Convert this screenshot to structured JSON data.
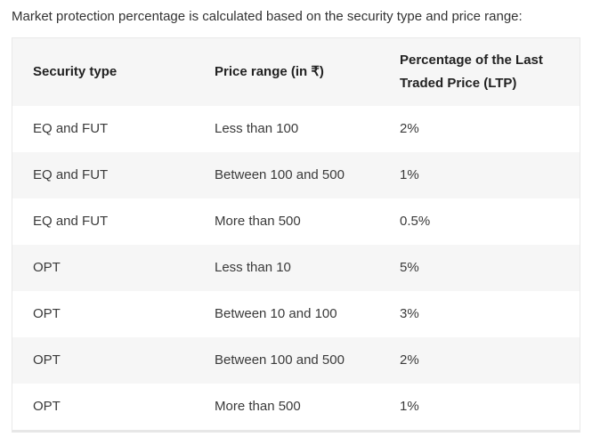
{
  "intro": "Market protection percentage is calculated based on the security type and price range:",
  "table": {
    "columns": [
      "Security type",
      "Price range (in ₹)",
      "Percentage of the Last Traded Price (LTP)"
    ],
    "rows": [
      [
        "EQ and FUT",
        "Less than 100",
        "2%"
      ],
      [
        "EQ and FUT",
        "Between 100 and 500",
        "1%"
      ],
      [
        "EQ and FUT",
        "More than 500",
        "0.5%"
      ],
      [
        "OPT",
        "Less than 10",
        "5%"
      ],
      [
        "OPT",
        "Between 10 and 100",
        "3%"
      ],
      [
        "OPT",
        "Between 100 and 500",
        "2%"
      ],
      [
        "OPT",
        "More than 500",
        "1%"
      ]
    ]
  },
  "colors": {
    "stripe_background": "#f6f6f6",
    "header_background": "#f6f6f6",
    "border": "#e9e9e9",
    "text": "#3a3a3a",
    "header_text": "#222222"
  }
}
